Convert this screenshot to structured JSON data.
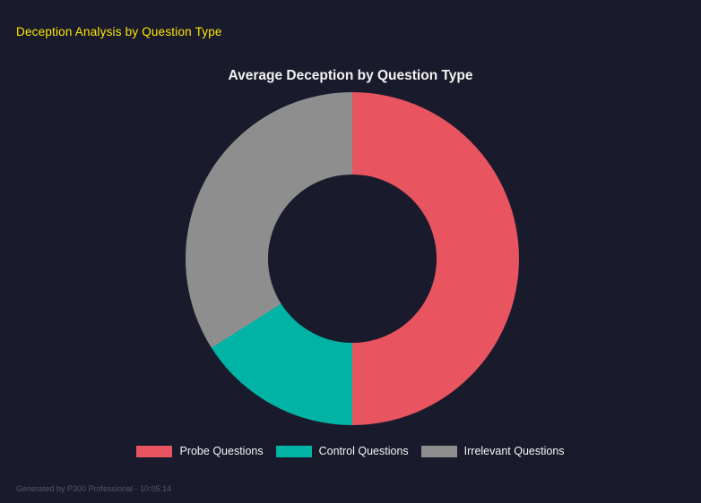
{
  "page": {
    "title": "Deception Analysis by Question Type",
    "footer": "Generated by P300 Professional - 10:05:14"
  },
  "chart_data": {
    "type": "pie",
    "subtype": "donut",
    "title": "Average Deception by Question Type",
    "categories": [
      "Probe Questions",
      "Control Questions",
      "Irrelevant Questions"
    ],
    "values": [
      50,
      16,
      34
    ],
    "unit": "% of arc (estimated from segment angles)",
    "colors": [
      "#e8545f",
      "#00b3a4",
      "#8e8e8e"
    ],
    "start_angle_deg": 0,
    "direction": "clockwise",
    "cutout_percent": 50,
    "legend_position": "bottom",
    "background": "#191a2b"
  }
}
